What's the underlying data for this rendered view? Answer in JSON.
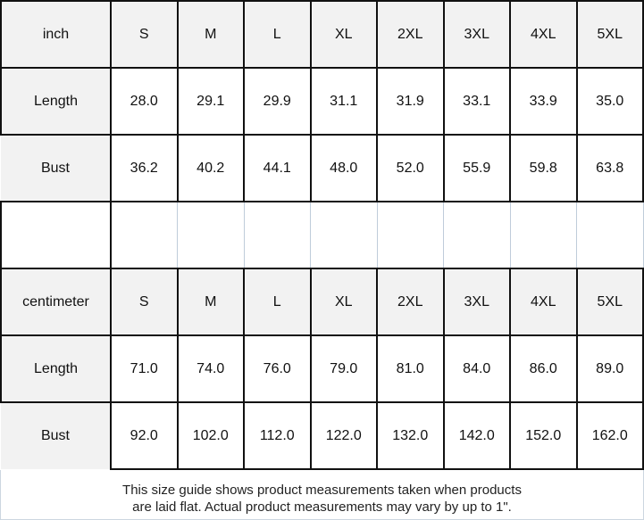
{
  "tables": [
    {
      "unit": "inch",
      "sizes": [
        "S",
        "M",
        "L",
        "XL",
        "2XL",
        "3XL",
        "4XL",
        "5XL"
      ],
      "rows": [
        {
          "label": "Length",
          "values": [
            "28.0",
            "29.1",
            "29.9",
            "31.1",
            "31.9",
            "33.1",
            "33.9",
            "35.0"
          ]
        },
        {
          "label": "Bust",
          "values": [
            "36.2",
            "40.2",
            "44.1",
            "48.0",
            "52.0",
            "55.9",
            "59.8",
            "63.8"
          ]
        }
      ]
    },
    {
      "unit": "centimeter",
      "sizes": [
        "S",
        "M",
        "L",
        "XL",
        "2XL",
        "3XL",
        "4XL",
        "5XL"
      ],
      "rows": [
        {
          "label": "Length",
          "values": [
            "71.0",
            "74.0",
            "76.0",
            "79.0",
            "81.0",
            "84.0",
            "86.0",
            "89.0"
          ]
        },
        {
          "label": "Bust",
          "values": [
            "92.0",
            "102.0",
            "112.0",
            "122.0",
            "132.0",
            "142.0",
            "152.0",
            "162.0"
          ]
        }
      ]
    }
  ],
  "footer": {
    "note_line1": "This size guide shows product measurements taken when products",
    "note_line2": "are laid flat. Actual product measurements may vary by up to 1\"."
  },
  "colors": {
    "header_bg": "#f2f2f2",
    "border_dark": "#111111",
    "border_light": "#bfccda",
    "footer_border": "#ccd6e0",
    "text": "#111111"
  }
}
